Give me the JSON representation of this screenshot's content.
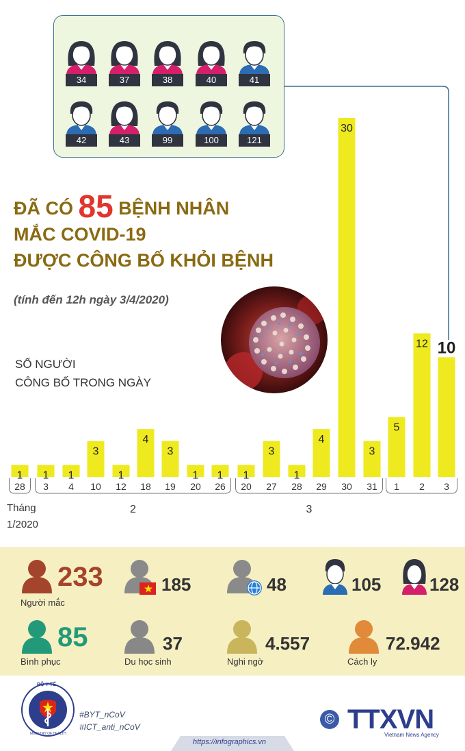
{
  "patients": [
    {
      "id": "34",
      "gender": "female"
    },
    {
      "id": "37",
      "gender": "female"
    },
    {
      "id": "38",
      "gender": "female"
    },
    {
      "id": "40",
      "gender": "female"
    },
    {
      "id": "41",
      "gender": "male"
    },
    {
      "id": "42",
      "gender": "male"
    },
    {
      "id": "43",
      "gender": "female"
    },
    {
      "id": "99",
      "gender": "male"
    },
    {
      "id": "100",
      "gender": "male"
    },
    {
      "id": "121",
      "gender": "male"
    }
  ],
  "title": {
    "line1_pre": "ĐÃ CÓ",
    "line1_num": "85",
    "line1_post": "BỆNH NHÂN",
    "line2": "MẮC COVID-19",
    "line3": "ĐƯỢC CÔNG BỐ KHỎI BỆNH",
    "subtitle": "(tính đến 12h ngày 3/4/2020)"
  },
  "y_label": {
    "line1": "SỐ NGƯỜI",
    "line2": "CÔNG BỐ TRONG NGÀY"
  },
  "month_label": {
    "line1": "Tháng",
    "line2": "1/2020"
  },
  "chart_data": {
    "type": "bar",
    "categories": [
      "28",
      "3",
      "4",
      "10",
      "12",
      "18",
      "19",
      "20",
      "26",
      "20",
      "27",
      "28",
      "29",
      "30",
      "31",
      "1",
      "2",
      "3"
    ],
    "months": [
      {
        "label": "",
        "start": 0,
        "end": 0
      },
      {
        "label": "2",
        "start": 1,
        "end": 8
      },
      {
        "label": "3",
        "start": 9,
        "end": 14
      },
      {
        "label": "",
        "start": 15,
        "end": 17
      }
    ],
    "values": [
      1,
      1,
      1,
      3,
      1,
      4,
      3,
      1,
      1,
      1,
      3,
      1,
      4,
      30,
      3,
      5,
      12,
      10
    ],
    "highlight_index": 17,
    "ylim": [
      0,
      30
    ],
    "bar_color": "#eeea1f",
    "grid": false
  },
  "stats": {
    "infected": {
      "value": "233",
      "label": "Người mắc",
      "color": "#a4442c"
    },
    "vietnamese": {
      "value": "185"
    },
    "foreign": {
      "value": "48"
    },
    "male": {
      "value": "105"
    },
    "female": {
      "value": "128"
    },
    "recovered": {
      "value": "85",
      "label": "Bình phục",
      "color": "#229a7a"
    },
    "students": {
      "value": "37",
      "label": "Du học sinh",
      "color": "#888888"
    },
    "suspected": {
      "value": "4.557",
      "label": "Nghi ngờ",
      "color": "#c9b55c"
    },
    "quarantine": {
      "value": "72.942",
      "label": "Cách ly",
      "color": "#e08a3a"
    }
  },
  "footer": {
    "logo_text": "BỘ Y TẾ",
    "logo_subtext": "MINISTRY OF HEALTH",
    "hashtag1": "#BYT_nCoV",
    "hashtag2": "#ICT_anti_nCoV",
    "url": "https://infographics.vn",
    "copyright": "©",
    "brand": "TTXVN",
    "brand_sub": "Vietnam News Agency"
  }
}
